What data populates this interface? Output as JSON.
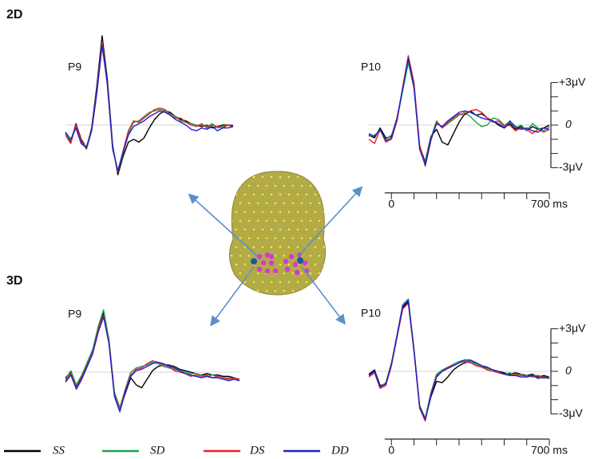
{
  "panels": [
    "2D",
    "3D"
  ],
  "chart_data": [
    {
      "type": "line",
      "title": "P9",
      "panel": 0,
      "xlim": [
        -100,
        700
      ],
      "ylim": [
        -3,
        3
      ],
      "x": [
        -100,
        -75,
        -50,
        -25,
        0,
        25,
        50,
        75,
        100,
        125,
        150,
        175,
        200,
        225,
        250,
        275,
        300,
        325,
        350,
        375,
        400,
        425,
        450,
        475,
        500,
        525,
        550,
        575,
        600,
        625,
        650,
        675,
        700
      ],
      "series": [
        {
          "name": "SS",
          "color": "#000000",
          "values": [
            -0.5,
            -1.2,
            0.1,
            -1.0,
            -1.6,
            -0.2,
            2.8,
            6.3,
            3.2,
            -1.4,
            -3.5,
            -2.2,
            -1.2,
            -1.0,
            -1.2,
            -0.9,
            -0.2,
            0.4,
            0.8,
            1.0,
            0.9,
            0.6,
            0.4,
            0.3,
            0.1,
            0.0,
            -0.1,
            0.0,
            -0.2,
            -0.1,
            0.0,
            0.0,
            -0.1
          ]
        },
        {
          "name": "SD",
          "color": "#1aa34a",
          "values": [
            -0.6,
            -1.1,
            0.0,
            -1.2,
            -1.5,
            -0.3,
            2.5,
            5.8,
            3.0,
            -1.5,
            -3.3,
            -2.0,
            -0.6,
            0.2,
            0.3,
            0.6,
            0.9,
            1.0,
            1.1,
            1.0,
            0.8,
            0.6,
            0.3,
            0.2,
            0.1,
            0.0,
            0.0,
            -0.1,
            0.1,
            -0.2,
            -0.1,
            0.0,
            0.0
          ]
        },
        {
          "name": "DS",
          "color": "#e8202a",
          "values": [
            -0.7,
            -1.3,
            0.0,
            -1.1,
            -1.7,
            -0.4,
            2.4,
            5.9,
            2.8,
            -1.6,
            -3.3,
            -1.8,
            -0.4,
            0.3,
            0.2,
            0.5,
            0.8,
            1.1,
            1.2,
            1.1,
            0.7,
            0.5,
            0.5,
            0.2,
            0.0,
            -0.1,
            0.1,
            -0.2,
            0.0,
            -0.1,
            -0.2,
            0.0,
            0.0
          ]
        },
        {
          "name": "DD",
          "color": "#1f1fd0",
          "values": [
            -0.5,
            -1.0,
            -0.2,
            -1.3,
            -1.6,
            -0.4,
            2.3,
            5.6,
            2.9,
            -1.7,
            -3.2,
            -1.9,
            -0.7,
            -0.1,
            0.1,
            0.3,
            0.6,
            0.8,
            1.0,
            0.9,
            0.7,
            0.4,
            0.2,
            0.0,
            -0.3,
            -0.4,
            -0.2,
            -0.3,
            -0.1,
            -0.4,
            -0.2,
            -0.2,
            -0.1
          ]
        }
      ]
    },
    {
      "type": "line",
      "title": "P10",
      "panel": 0,
      "xlim": [
        -100,
        700
      ],
      "ylim": [
        -3,
        3
      ],
      "xticks": [
        0,
        {
          "value": 700,
          "label": "700 ms"
        }
      ],
      "x_minor_ticks": [
        100,
        200,
        300,
        400,
        500,
        600
      ],
      "yticks": [
        {
          "value": 3,
          "label": "+3μV"
        },
        0,
        {
          "value": -3,
          "label": "-3μV"
        }
      ],
      "y_minor_ticks": [
        2,
        1,
        -1,
        -2
      ],
      "x": [
        -100,
        -75,
        -50,
        -25,
        0,
        25,
        50,
        75,
        100,
        125,
        150,
        175,
        200,
        225,
        250,
        275,
        300,
        325,
        350,
        375,
        400,
        425,
        450,
        475,
        500,
        525,
        550,
        575,
        600,
        625,
        650,
        675,
        700
      ],
      "series": [
        {
          "name": "SS",
          "color": "#000000",
          "values": [
            -0.7,
            -0.9,
            -0.2,
            -0.9,
            -0.8,
            0.5,
            2.5,
            4.6,
            2.8,
            -1.5,
            -2.6,
            -0.8,
            -0.3,
            -1.2,
            -1.4,
            -0.6,
            0.2,
            0.8,
            1.0,
            0.7,
            0.8,
            0.5,
            0.3,
            0.0,
            -0.2,
            0.1,
            -0.3,
            -0.1,
            -0.4,
            -0.1,
            -0.3,
            -0.2,
            0.0
          ]
        },
        {
          "name": "SD",
          "color": "#1aa34a",
          "values": [
            -0.8,
            -0.7,
            -0.4,
            -1.0,
            -0.7,
            0.4,
            2.4,
            4.4,
            2.6,
            -1.6,
            -2.7,
            -0.9,
            0.3,
            -0.2,
            0.1,
            0.4,
            0.7,
            0.9,
            0.6,
            0.2,
            -0.1,
            0.0,
            0.5,
            0.4,
            0.0,
            0.2,
            -0.2,
            0.0,
            -0.4,
            0.1,
            -0.2,
            -0.4,
            -0.1
          ]
        },
        {
          "name": "DS",
          "color": "#e8202a",
          "values": [
            -1.0,
            -1.3,
            -0.3,
            -1.2,
            -1.0,
            0.3,
            2.7,
            4.9,
            3.0,
            -1.4,
            -2.9,
            -1.1,
            0.2,
            -0.2,
            0.2,
            0.5,
            0.8,
            0.7,
            1.0,
            1.1,
            0.9,
            0.5,
            0.2,
            0.3,
            -0.1,
            0.0,
            -0.4,
            -0.2,
            -0.3,
            -0.6,
            -0.3,
            -0.5,
            -0.3
          ]
        },
        {
          "name": "DD",
          "color": "#1f1fd0",
          "values": [
            -0.6,
            -0.8,
            -0.3,
            -1.1,
            -0.9,
            0.5,
            2.6,
            4.7,
            2.7,
            -1.7,
            -2.8,
            -1.0,
            0.1,
            -0.1,
            0.3,
            0.6,
            0.9,
            1.0,
            0.9,
            0.7,
            0.5,
            0.4,
            0.3,
            0.1,
            -0.2,
            0.3,
            -0.1,
            -0.3,
            -0.2,
            -0.4,
            -0.5,
            -0.2,
            -0.3
          ]
        }
      ]
    },
    {
      "type": "line",
      "title": "P9",
      "panel": 1,
      "xlim": [
        -100,
        700
      ],
      "ylim": [
        -3,
        3
      ],
      "x": [
        -100,
        -75,
        -50,
        -25,
        0,
        25,
        50,
        75,
        100,
        125,
        150,
        175,
        200,
        225,
        250,
        275,
        300,
        325,
        350,
        375,
        400,
        425,
        450,
        475,
        500,
        525,
        550,
        575,
        600,
        625,
        650,
        675,
        700
      ],
      "series": [
        {
          "name": "SS",
          "color": "#000000",
          "values": [
            -0.4,
            0.0,
            -1.0,
            -0.3,
            0.6,
            1.5,
            3.0,
            4.2,
            2.2,
            -1.5,
            -2.6,
            -1.5,
            -0.4,
            -0.9,
            -1.1,
            -0.5,
            0.1,
            0.4,
            0.5,
            0.5,
            0.4,
            0.2,
            0.1,
            0.0,
            -0.1,
            -0.2,
            -0.1,
            -0.2,
            -0.2,
            -0.3,
            -0.3,
            -0.4,
            -0.5
          ]
        },
        {
          "name": "SD",
          "color": "#1aa34a",
          "values": [
            -0.5,
            0.1,
            -0.9,
            -0.2,
            0.7,
            1.6,
            3.2,
            4.4,
            2.3,
            -1.4,
            -2.5,
            -1.2,
            0.0,
            0.3,
            0.4,
            0.5,
            0.7,
            0.6,
            0.4,
            0.3,
            0.2,
            0.1,
            0.0,
            -0.1,
            -0.1,
            -0.2,
            -0.3,
            -0.2,
            -0.3,
            -0.4,
            -0.4,
            -0.5,
            -0.6
          ]
        },
        {
          "name": "DS",
          "color": "#e8202a",
          "values": [
            -0.6,
            -0.1,
            -1.1,
            -0.4,
            0.5,
            1.4,
            3.0,
            4.0,
            2.1,
            -1.6,
            -2.7,
            -1.3,
            -0.2,
            0.2,
            0.3,
            0.6,
            0.8,
            0.7,
            0.5,
            0.4,
            0.1,
            0.0,
            -0.1,
            -0.3,
            -0.2,
            -0.3,
            -0.2,
            -0.4,
            -0.3,
            -0.4,
            -0.5,
            -0.4,
            -0.5
          ]
        },
        {
          "name": "DD",
          "color": "#1f1fd0",
          "values": [
            -0.7,
            -0.2,
            -1.2,
            -0.5,
            0.4,
            1.3,
            2.8,
            3.9,
            2.0,
            -1.7,
            -2.8,
            -1.4,
            -0.3,
            0.1,
            0.2,
            0.4,
            0.6,
            0.7,
            0.6,
            0.4,
            0.3,
            0.1,
            -0.1,
            -0.2,
            -0.3,
            -0.4,
            -0.3,
            -0.4,
            -0.4,
            -0.5,
            -0.6,
            -0.5,
            -0.6
          ]
        }
      ]
    },
    {
      "type": "line",
      "title": "P10",
      "panel": 1,
      "xlim": [
        -100,
        700
      ],
      "ylim": [
        -3,
        3
      ],
      "xticks": [
        0,
        {
          "value": 700,
          "label": "700 ms"
        }
      ],
      "x_minor_ticks": [
        100,
        200,
        300,
        400,
        500,
        600
      ],
      "yticks": [
        {
          "value": 3,
          "label": "+3μV"
        },
        0,
        {
          "value": -3,
          "label": "-3μV"
        }
      ],
      "y_minor_ticks": [
        2,
        1,
        -1,
        -2
      ],
      "x": [
        -100,
        -75,
        -50,
        -25,
        0,
        25,
        50,
        75,
        100,
        125,
        150,
        175,
        200,
        225,
        250,
        275,
        300,
        325,
        350,
        375,
        400,
        425,
        450,
        475,
        500,
        525,
        550,
        575,
        600,
        625,
        650,
        675,
        700
      ],
      "series": [
        {
          "name": "SS",
          "color": "#000000",
          "values": [
            -0.2,
            0.1,
            -1.0,
            -0.9,
            0.5,
            2.5,
            4.5,
            4.9,
            1.5,
            -2.5,
            -3.4,
            -1.8,
            -0.7,
            -0.8,
            -0.4,
            0.1,
            0.4,
            0.6,
            0.7,
            0.6,
            0.4,
            0.2,
            0.1,
            0.0,
            -0.1,
            -0.2,
            -0.1,
            -0.2,
            -0.3,
            -0.2,
            -0.4,
            -0.3,
            -0.4
          ]
        },
        {
          "name": "SD",
          "color": "#1aa34a",
          "values": [
            -0.3,
            0.0,
            -1.1,
            -0.8,
            0.6,
            2.6,
            4.7,
            5.1,
            1.6,
            -2.4,
            -3.3,
            -1.5,
            -0.2,
            0.1,
            0.3,
            0.5,
            0.7,
            0.8,
            0.7,
            0.5,
            0.3,
            0.2,
            0.1,
            -0.1,
            -0.2,
            -0.1,
            -0.3,
            -0.2,
            -0.4,
            -0.3,
            -0.3,
            -0.5,
            -0.4
          ]
        },
        {
          "name": "DS",
          "color": "#e8202a",
          "values": [
            -0.4,
            -0.1,
            -1.2,
            -1.0,
            0.4,
            2.4,
            4.4,
            4.8,
            1.4,
            -2.6,
            -3.5,
            -1.6,
            -0.3,
            0.0,
            0.3,
            0.4,
            0.6,
            0.7,
            0.6,
            0.4,
            0.3,
            0.1,
            0.0,
            -0.1,
            -0.2,
            -0.3,
            -0.2,
            -0.3,
            -0.3,
            -0.4,
            -0.3,
            -0.4,
            -0.5
          ]
        },
        {
          "name": "DD",
          "color": "#1f1fd0",
          "values": [
            -0.3,
            0.0,
            -1.1,
            -0.9,
            0.5,
            2.5,
            4.6,
            5.0,
            1.5,
            -2.5,
            -3.4,
            -1.7,
            -0.4,
            0.0,
            0.2,
            0.4,
            0.6,
            0.8,
            0.8,
            0.6,
            0.4,
            0.3,
            0.1,
            0.0,
            -0.2,
            -0.3,
            -0.3,
            -0.4,
            -0.4,
            -0.3,
            -0.5,
            -0.4,
            -0.5
          ]
        }
      ]
    }
  ]
}
